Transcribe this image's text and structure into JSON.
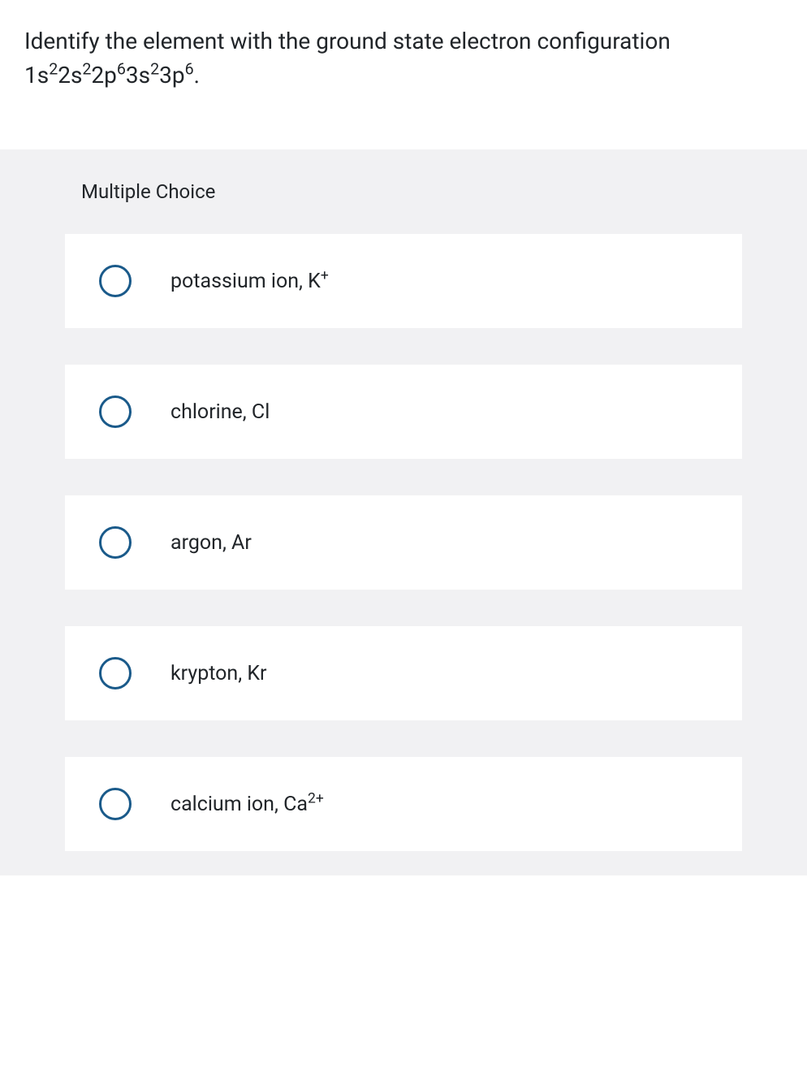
{
  "question": {
    "stem_text": "Identify the element with the ground state electron configuration",
    "config_parts": [
      "1s",
      "2",
      "2s",
      "2",
      "2p",
      "6",
      "3s",
      "2",
      "3p",
      "6",
      "."
    ]
  },
  "section_label": "Multiple Choice",
  "options": [
    {
      "text": "potassium ion, K",
      "sup": "+"
    },
    {
      "text": "chlorine, Cl",
      "sup": ""
    },
    {
      "text": "argon, Ar",
      "sup": ""
    },
    {
      "text": "krypton, Kr",
      "sup": ""
    },
    {
      "text": "calcium ion, Ca",
      "sup": "2+"
    }
  ],
  "colors": {
    "text": "#212529",
    "radio_border": "#1a5a8a",
    "section_bg": "#f1f1f3",
    "option_bg": "#ffffff"
  },
  "typography": {
    "question_fontsize": 28,
    "section_fontsize": 24,
    "option_fontsize": 25
  }
}
